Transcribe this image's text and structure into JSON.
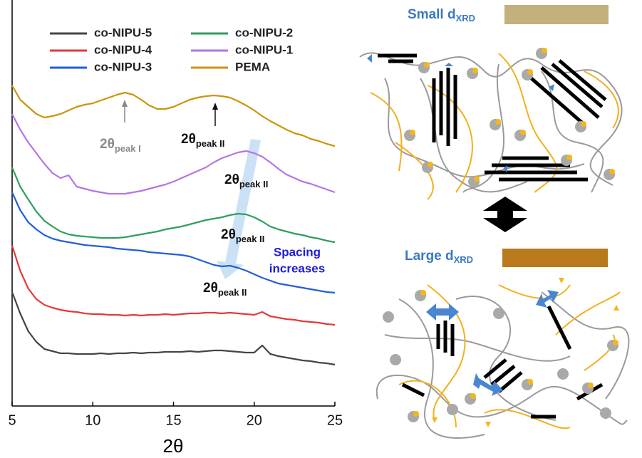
{
  "chart_data": {
    "type": "line",
    "x": [
      5,
      5.5,
      6,
      6.5,
      7,
      7.5,
      8,
      8.5,
      9,
      9.5,
      10,
      10.5,
      11,
      11.5,
      12,
      12.5,
      13,
      13.5,
      14,
      14.5,
      15,
      15.5,
      16,
      16.5,
      17,
      17.5,
      18,
      18.5,
      19,
      19.5,
      20,
      20.5,
      21,
      21.5,
      22,
      22.5,
      23,
      23.5,
      24,
      24.5,
      25
    ],
    "xlim": [
      5,
      25
    ],
    "xticks": [
      5,
      10,
      15,
      20,
      25
    ],
    "ylim": [
      0,
      570
    ],
    "x_label": "2θ",
    "series": [
      {
        "name": "co-NIPU-5",
        "color": "#454545",
        "values": [
          160,
          130,
          105,
          90,
          80,
          77,
          74,
          74,
          73,
          73,
          73,
          74,
          73,
          74,
          74,
          75,
          74,
          75,
          75,
          76,
          76,
          76,
          77,
          76,
          77,
          78,
          78,
          77,
          76,
          75,
          75,
          85,
          73,
          70,
          68,
          66,
          64,
          63,
          61,
          60,
          58
        ]
      },
      {
        "name": "co-NIPU-4",
        "color": "#e23a3a",
        "values": [
          225,
          190,
          165,
          150,
          142,
          138,
          135,
          133,
          132,
          130,
          129,
          129,
          128,
          128,
          127,
          128,
          127,
          128,
          128,
          129,
          128,
          129,
          130,
          130,
          131,
          131,
          130,
          131,
          130,
          129,
          128,
          132,
          126,
          124,
          122,
          121,
          119,
          118,
          117,
          115,
          114
        ]
      },
      {
        "name": "co-NIPU-3",
        "color": "#2160d6",
        "values": [
          300,
          275,
          258,
          248,
          240,
          235,
          232,
          230,
          228,
          226,
          225,
          224,
          223,
          221,
          220,
          219,
          218,
          216,
          215,
          214,
          213,
          212,
          210,
          206,
          202,
          198,
          196,
          197,
          194,
          190,
          185,
          180,
          176,
          172,
          170,
          168,
          166,
          164,
          162,
          160,
          159
        ]
      },
      {
        "name": "co-NIPU-2",
        "color": "#2f9e5c",
        "values": [
          335,
          308,
          290,
          273,
          260,
          252,
          245,
          241,
          239,
          238,
          237,
          236,
          236,
          236,
          237,
          239,
          241,
          243,
          245,
          248,
          250,
          252,
          255,
          258,
          261,
          263,
          265,
          268,
          270,
          269,
          265,
          259,
          252,
          248,
          245,
          242,
          240,
          237,
          235,
          232,
          230
        ]
      },
      {
        "name": "co-NIPU-1",
        "color": "#b376e2",
        "values": [
          410,
          388,
          370,
          355,
          340,
          327,
          320,
          324,
          308,
          305,
          302,
          300,
          298,
          298,
          298,
          300,
          302,
          305,
          308,
          311,
          315,
          320,
          325,
          330,
          335,
          342,
          348,
          352,
          356,
          358,
          355,
          350,
          342,
          333,
          325,
          320,
          315,
          312,
          308,
          304,
          300
        ]
      },
      {
        "name": "PEMA",
        "color": "#c8960c",
        "values": [
          450,
          430,
          420,
          410,
          405,
          407,
          410,
          415,
          420,
          423,
          425,
          429,
          433,
          437,
          440,
          437,
          430,
          422,
          417,
          417,
          420,
          425,
          430,
          433,
          435,
          436,
          435,
          433,
          428,
          422,
          415,
          407,
          400,
          394,
          388,
          383,
          380,
          375,
          372,
          368,
          365
        ]
      }
    ],
    "annotations": [
      {
        "text": "2θ",
        "sub": "peak I"
      },
      {
        "text": "2θ",
        "sub": "peak II"
      },
      {
        "text": "2θ",
        "sub": "peak II"
      },
      {
        "text": "2θ",
        "sub": "peak II"
      },
      {
        "text": "2θ",
        "sub": "peak II"
      },
      {
        "lines": [
          "Spacing",
          "increases"
        ]
      }
    ]
  },
  "schematic": {
    "small_label": {
      "text": "Small d",
      "sub": "XRD"
    },
    "large_label": {
      "text": "Large d",
      "sub": "XRD"
    }
  }
}
